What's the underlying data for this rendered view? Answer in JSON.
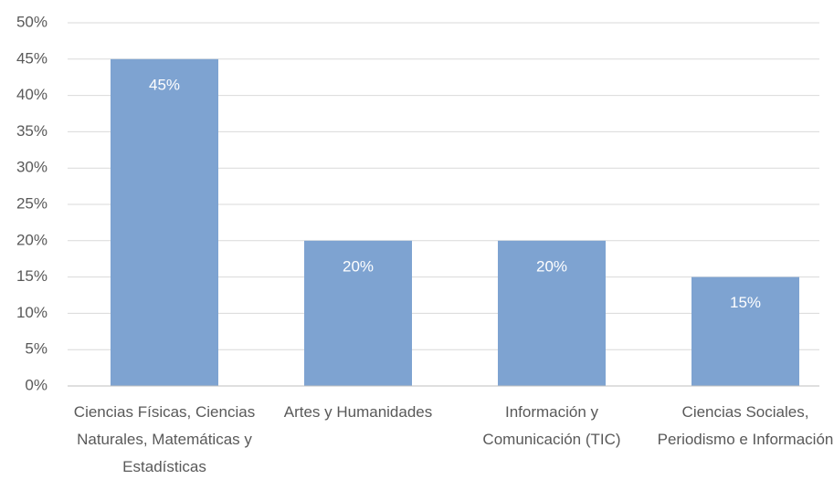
{
  "chart_data": {
    "type": "bar",
    "categories": [
      "Ciencias Físicas, Ciencias Naturales, Matemáticas y Estadísticas",
      "Artes y Humanidades",
      "Información y Comunicación (TIC)",
      "Ciencias Sociales, Periodismo e Información"
    ],
    "values": [
      45,
      20,
      20,
      15
    ],
    "value_labels": [
      "45%",
      "20%",
      "20%",
      "15%"
    ],
    "color": "#7ea3d1",
    "ylim": [
      0,
      50
    ],
    "yticks": [
      {
        "value": 0,
        "label": "0%"
      },
      {
        "value": 5,
        "label": "5%"
      },
      {
        "value": 10,
        "label": "10%"
      },
      {
        "value": 15,
        "label": "15%"
      },
      {
        "value": 20,
        "label": "20%"
      },
      {
        "value": 25,
        "label": "25%"
      },
      {
        "value": 30,
        "label": "30%"
      },
      {
        "value": 35,
        "label": "35%"
      },
      {
        "value": 40,
        "label": "40%"
      },
      {
        "value": 45,
        "label": "45%"
      },
      {
        "value": 50,
        "label": "50%"
      }
    ],
    "grid": true
  }
}
